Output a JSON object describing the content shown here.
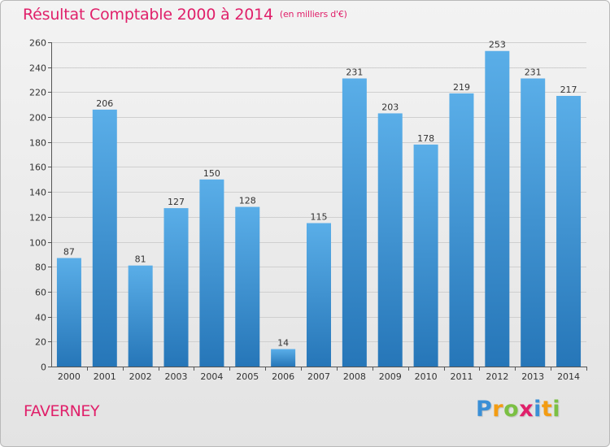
{
  "header": {
    "title": "Résultat Comptable 2000 à 2014",
    "unit": "(en milliers d'€)"
  },
  "footer": {
    "commune": "FAVERNEY",
    "logo_letters": [
      "P",
      "r",
      "o",
      "x",
      "i",
      "t",
      "i"
    ],
    "logo_colors": [
      "#3a8fd6",
      "#f39c12",
      "#7bc043",
      "#e0206a",
      "#3a8fd6",
      "#f39c12",
      "#7bc043"
    ]
  },
  "colors": {
    "title": "#e0206a",
    "bar_top": "#5aaee8",
    "bar_bottom": "#2676b8"
  },
  "chart_data": {
    "type": "bar",
    "title": "Résultat Comptable 2000 à 2014",
    "subtitle": "(en milliers d'€)",
    "categories": [
      "2000",
      "2001",
      "2002",
      "2003",
      "2004",
      "2005",
      "2006",
      "2007",
      "2008",
      "2009",
      "2010",
      "2011",
      "2012",
      "2013",
      "2014"
    ],
    "values": [
      87,
      206,
      81,
      127,
      150,
      128,
      14,
      115,
      231,
      203,
      178,
      219,
      253,
      231,
      217
    ],
    "ylim": [
      0,
      260
    ],
    "yticks": [
      0,
      20,
      40,
      60,
      80,
      100,
      120,
      140,
      160,
      180,
      200,
      220,
      240,
      260
    ],
    "grid": true,
    "legend": false
  }
}
